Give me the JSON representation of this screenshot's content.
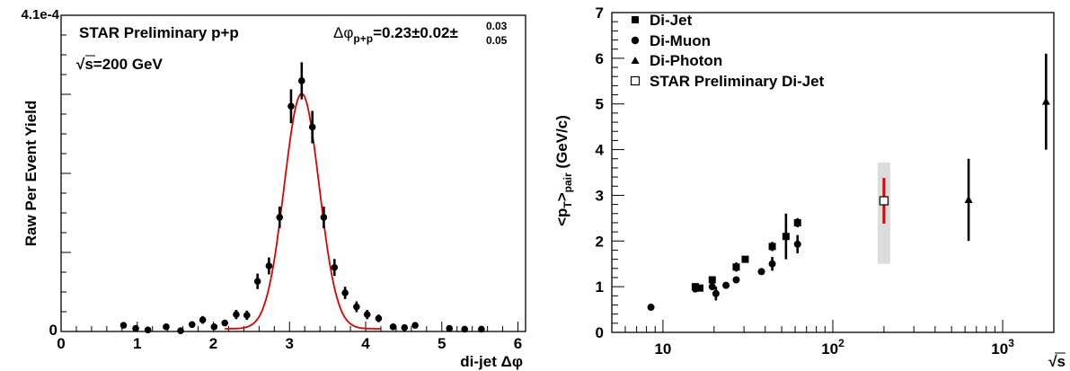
{
  "chart_data": [
    {
      "type": "scatter",
      "id": "left",
      "xlabel": "di-jet Δφ",
      "ylabel": "Raw Per Event Yield",
      "xlim": [
        0,
        6.1
      ],
      "ylim": [
        0,
        0.00041
      ],
      "x_ticks": [
        "0",
        "1",
        "2",
        "3",
        "4",
        "5",
        "6"
      ],
      "y_top_label": "4.1e-4",
      "y_zero_label": "0",
      "annotation_title": "STAR Preliminary p+p",
      "annotation_energy_sqrt": "√",
      "annotation_energy": "s=200 GeV",
      "annotation_width_main": "Δφ",
      "annotation_width_sub": "p+p",
      "annotation_width_value": "=0.23±0.02±",
      "annotation_width_sys_up": "0.03",
      "annotation_width_sys_down": "0.05",
      "fit_color": "#dd0000",
      "fit": {
        "mean": 3.16,
        "sigma": 0.23,
        "amplitude": 0.000305,
        "baseline": 3.5e-06
      },
      "points": [
        {
          "x": 0.82,
          "y": 8e-06,
          "err": 4e-06
        },
        {
          "x": 0.98,
          "y": 4e-06,
          "err": 4e-06
        },
        {
          "x": 1.14,
          "y": 2e-06,
          "err": 4e-06
        },
        {
          "x": 1.38,
          "y": 6e-06,
          "err": 4e-06
        },
        {
          "x": 1.57,
          "y": 1e-06,
          "err": 4e-06
        },
        {
          "x": 1.72,
          "y": 9e-06,
          "err": 4e-06
        },
        {
          "x": 1.86,
          "y": 1.5e-05,
          "err": 5e-06
        },
        {
          "x": 2.01,
          "y": 6e-06,
          "err": 4e-06
        },
        {
          "x": 2.15,
          "y": 1.1e-05,
          "err": 4e-06
        },
        {
          "x": 2.3,
          "y": 2.2e-05,
          "err": 6e-06
        },
        {
          "x": 2.44,
          "y": 2.1e-05,
          "err": 6e-06
        },
        {
          "x": 2.58,
          "y": 6.5e-05,
          "err": 1e-05
        },
        {
          "x": 2.73,
          "y": 8.5e-05,
          "err": 1.1e-05
        },
        {
          "x": 2.87,
          "y": 0.000148,
          "err": 1.4e-05
        },
        {
          "x": 3.02,
          "y": 0.000292,
          "err": 2.2e-05
        },
        {
          "x": 3.16,
          "y": 0.000325,
          "err": 2.4e-05
        },
        {
          "x": 3.3,
          "y": 0.000265,
          "err": 2.1e-05
        },
        {
          "x": 3.45,
          "y": 0.000148,
          "err": 1.4e-05
        },
        {
          "x": 3.59,
          "y": 8.3e-05,
          "err": 1.1e-05
        },
        {
          "x": 3.73,
          "y": 5e-05,
          "err": 8e-06
        },
        {
          "x": 3.88,
          "y": 3.2e-05,
          "err": 7e-06
        },
        {
          "x": 4.02,
          "y": 2.2e-05,
          "err": 6e-06
        },
        {
          "x": 4.17,
          "y": 1.7e-05,
          "err": 5e-06
        },
        {
          "x": 4.36,
          "y": 6e-06,
          "err": 4e-06
        },
        {
          "x": 4.51,
          "y": 5e-06,
          "err": 4e-06
        },
        {
          "x": 4.65,
          "y": 8e-06,
          "err": 4e-06
        },
        {
          "x": 5.1,
          "y": 4e-06,
          "err": 3e-06
        },
        {
          "x": 5.3,
          "y": 3e-06,
          "err": 3e-06
        },
        {
          "x": 5.52,
          "y": 3e-06,
          "err": 3e-06
        }
      ]
    },
    {
      "type": "scatter",
      "id": "right",
      "xlabel": "√s",
      "ylabel_main": "<p",
      "ylabel_sub1": "T",
      "ylabel_mid": ">",
      "ylabel_sub2": "pair",
      "ylabel_unit": " (GeV/c)",
      "x_scale": "log",
      "xlim": [
        5,
        2000
      ],
      "ylim": [
        0,
        7
      ],
      "x_ticks": [
        {
          "v": 10,
          "base": "10",
          "exp": ""
        },
        {
          "v": 100,
          "base": "10",
          "exp": "2"
        },
        {
          "v": 1000,
          "base": "10",
          "exp": "3"
        }
      ],
      "y_ticks": [
        "0",
        "1",
        "2",
        "3",
        "4",
        "5",
        "6",
        "7"
      ],
      "legend_position": "top-left",
      "legend": [
        {
          "marker": "square",
          "label": "Di-Jet"
        },
        {
          "marker": "circle",
          "label": "Di-Muon"
        },
        {
          "marker": "triangle",
          "label": "Di-Photon"
        },
        {
          "marker": "open-square",
          "label": "STAR Preliminary Di-Jet"
        }
      ],
      "series": [
        {
          "name": "Di-Jet",
          "marker": "square",
          "points": [
            {
              "x": 15.5,
              "y": 1.0,
              "err": 0.05
            },
            {
              "x": 16.5,
              "y": 0.97,
              "err": 0.05
            },
            {
              "x": 19.5,
              "y": 1.15,
              "err": 0.05
            },
            {
              "x": 27.0,
              "y": 1.43,
              "err": 0.1
            },
            {
              "x": 30.5,
              "y": 1.6,
              "err": 0.07
            },
            {
              "x": 44.0,
              "y": 1.88,
              "err": 0.1
            },
            {
              "x": 53.0,
              "y": 2.1,
              "err": 0.5
            },
            {
              "x": 62.0,
              "y": 2.4,
              "err": 0.1
            }
          ]
        },
        {
          "name": "Di-Muon",
          "marker": "circle",
          "points": [
            {
              "x": 8.5,
              "y": 0.55,
              "err": 0.03
            },
            {
              "x": 15.5,
              "y": 0.95,
              "err": 0.05
            },
            {
              "x": 19.5,
              "y": 1.0,
              "err": 0.07
            },
            {
              "x": 20.5,
              "y": 0.85,
              "err": 0.15
            },
            {
              "x": 23.5,
              "y": 1.03,
              "err": 0.04
            },
            {
              "x": 27.0,
              "y": 1.15,
              "err": 0.05
            },
            {
              "x": 38.0,
              "y": 1.33,
              "err": 0.05
            },
            {
              "x": 44.0,
              "y": 1.5,
              "err": 0.15
            },
            {
              "x": 62.0,
              "y": 1.93,
              "err": 0.2
            }
          ]
        },
        {
          "name": "Di-Photon",
          "marker": "triangle",
          "points": [
            {
              "x": 630,
              "y": 2.9,
              "err": 0.9
            },
            {
              "x": 1800,
              "y": 5.05,
              "err": 1.05
            }
          ]
        },
        {
          "name": "STAR Preliminary Di-Jet",
          "marker": "open-square",
          "points": [
            {
              "x": 200,
              "y": 2.88,
              "err": 0.5,
              "sys_low": 1.5,
              "sys_high": 3.72
            }
          ],
          "stat_color": "#dd0000",
          "sys_color": "#dcdcdc"
        }
      ]
    }
  ]
}
